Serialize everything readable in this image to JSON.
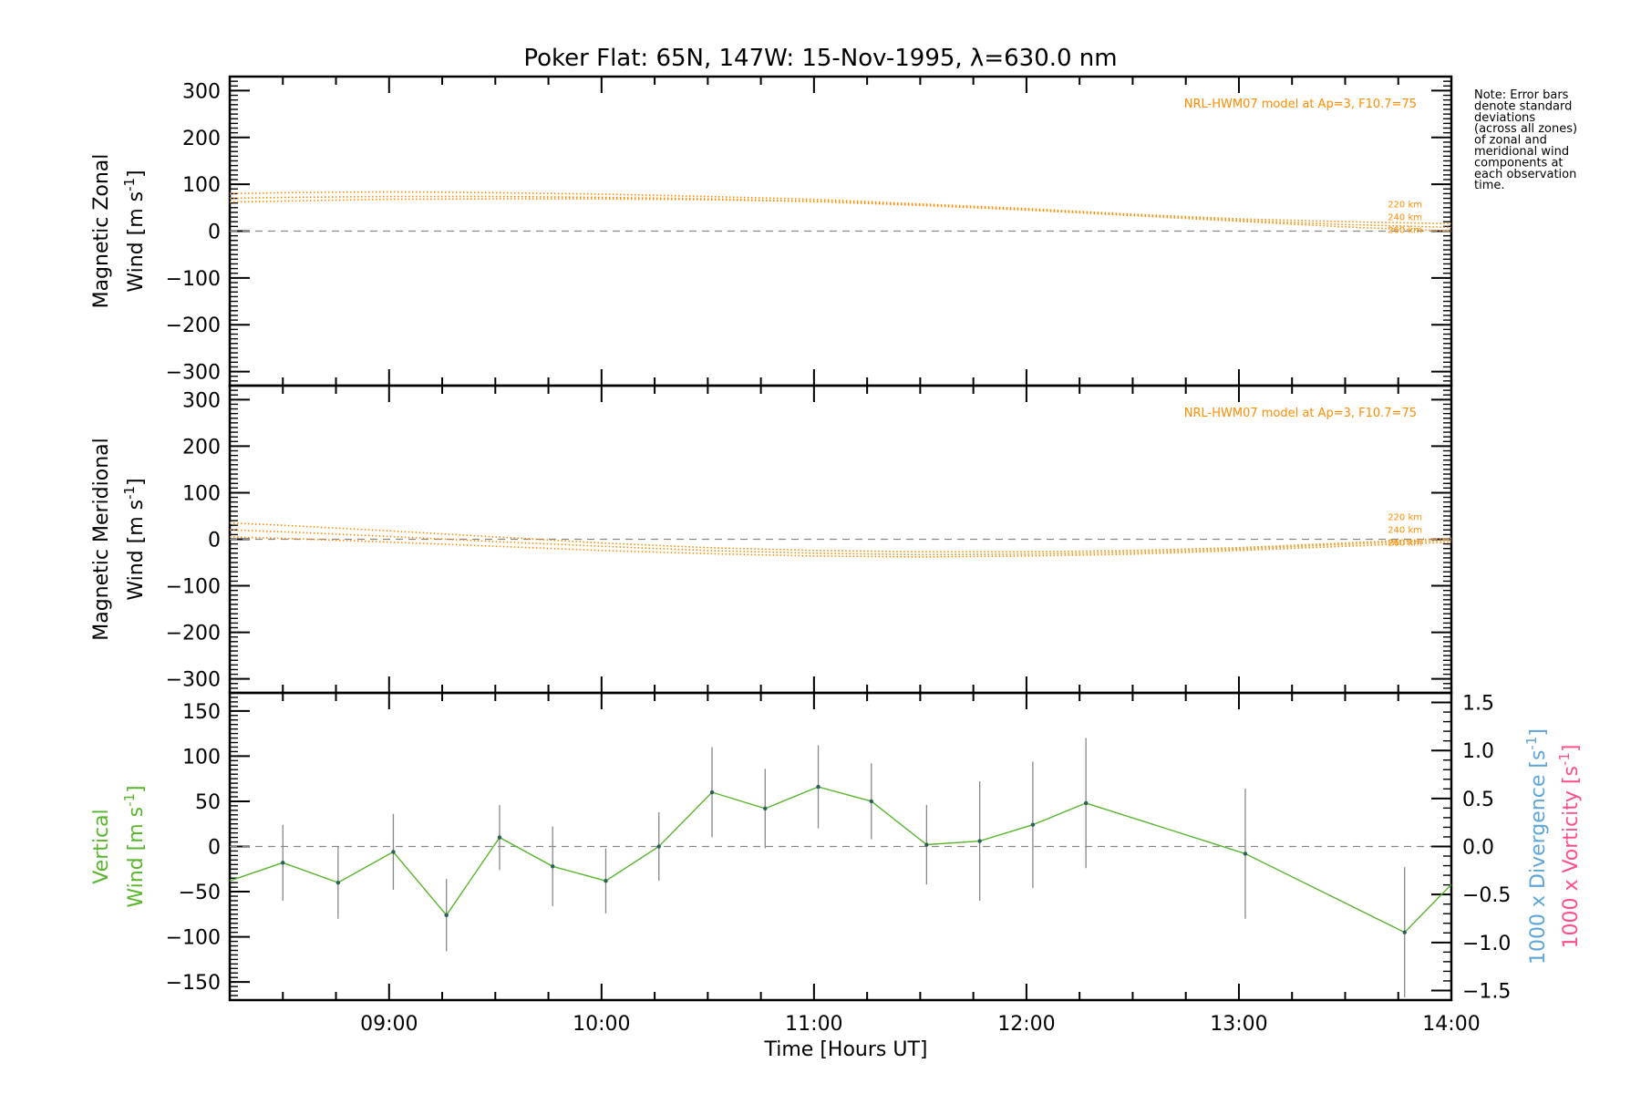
{
  "chart_data": {
    "type": "line",
    "title": "Poker Flat: 65N, 147W: 15-Nov-1995, λ=630.0 nm",
    "note": [
      "Note: Error bars",
      "denote standard",
      "deviations",
      "(across all zones)",
      "of zonal and",
      "meridional wind",
      "components at",
      "each observation",
      "time."
    ],
    "x_range": [
      8.25,
      14.0
    ],
    "x_ticks": [
      9,
      10,
      11,
      12,
      13,
      14
    ],
    "x_tick_labels": [
      "09:00",
      "10:00",
      "11:00",
      "12:00",
      "13:00",
      "14:00"
    ],
    "xlabel": "Time [Hours UT]",
    "colors": {
      "model": "#ff8c00",
      "vertical": "#5ab52e",
      "divergence": "#5fa6d6",
      "vorticity": "#ff4f8b",
      "errorbar": "#888888",
      "zero": "#888888"
    },
    "panels": [
      {
        "id": "zonal",
        "ylabel_lines": [
          "Magnetic Zonal",
          "Wind [m s",
          "-1",
          "]"
        ],
        "ylim": [
          -330,
          330
        ],
        "y_ticks": [
          -300,
          -200,
          -100,
          0,
          100,
          200,
          300
        ],
        "y_tick_labels": [
          "−300",
          "−200",
          "−100",
          "0",
          "100",
          "200",
          "300"
        ],
        "model_label": "NRL-HWM07 model at Ap=3, F10.7=75",
        "altitudes": [
          "220 km",
          "240 km",
          "260 km"
        ],
        "model_x": [
          8.25,
          8.5,
          9.0,
          9.5,
          10.0,
          10.5,
          11.0,
          11.5,
          12.0,
          12.5,
          13.0,
          13.5,
          14.0
        ],
        "model_series": [
          {
            "name": "220 km",
            "values": [
              80,
              82,
              84,
              82,
              79,
              74,
              68,
              58,
              48,
              36,
              26,
              20,
              16
            ]
          },
          {
            "name": "240 km",
            "values": [
              70,
              72,
              74,
              74,
              72,
              69,
              64,
              56,
              46,
              34,
              23,
              14,
              8
            ]
          },
          {
            "name": "260 km",
            "values": [
              62,
              64,
              68,
              69,
              69,
              67,
              63,
              55,
              45,
              33,
              21,
              9,
              0
            ]
          }
        ]
      },
      {
        "id": "meridional",
        "ylabel_lines": [
          "Magnetic Meridional",
          "Wind [m s",
          "-1",
          "]"
        ],
        "ylim": [
          -330,
          330
        ],
        "y_ticks": [
          -300,
          -200,
          -100,
          0,
          100,
          200,
          300
        ],
        "y_tick_labels": [
          "−300",
          "−200",
          "−100",
          "0",
          "100",
          "200",
          "300"
        ],
        "model_label": "NRL-HWM07 model at Ap=3, F10.7=75",
        "altitudes": [
          "220 km",
          "240 km",
          "260 km"
        ],
        "model_x": [
          8.25,
          8.5,
          9.0,
          9.5,
          10.0,
          10.5,
          11.0,
          11.5,
          12.0,
          12.5,
          13.0,
          13.5,
          14.0
        ],
        "model_series": [
          {
            "name": "220 km",
            "values": [
              35,
              30,
              18,
              5,
              -8,
              -18,
              -24,
              -27,
              -27,
              -24,
              -18,
              -8,
              2
            ]
          },
          {
            "name": "240 km",
            "values": [
              20,
              16,
              6,
              -5,
              -15,
              -24,
              -30,
              -33,
              -32,
              -28,
              -21,
              -11,
              -2
            ]
          },
          {
            "name": "260 km",
            "values": [
              5,
              2,
              -6,
              -15,
              -24,
              -31,
              -36,
              -38,
              -36,
              -32,
              -24,
              -15,
              -6
            ]
          }
        ]
      },
      {
        "id": "vertical",
        "ylabel_lines": [
          "Vertical",
          "Wind [m s",
          "-1",
          "]"
        ],
        "ylim": [
          -170,
          170
        ],
        "y_ticks": [
          -150,
          -100,
          -50,
          0,
          50,
          100,
          150
        ],
        "y_tick_labels": [
          "−150",
          "−100",
          "−50",
          "0",
          "50",
          "100",
          "150"
        ],
        "right_ylim": [
          -1.6,
          1.6
        ],
        "right_ticks": [
          -1.5,
          -1.0,
          -0.5,
          0.0,
          0.5,
          1.0,
          1.5
        ],
        "right_tick_labels": [
          "−1.5",
          "−1.0",
          "−0.5",
          "0.0",
          "0.5",
          "1.0",
          "1.5"
        ],
        "right_label_divergence": [
          "1000 x Divergence [s",
          "-1",
          "]"
        ],
        "right_label_vorticity": [
          "1000 x Vorticity [s",
          "-1",
          "]"
        ],
        "series": [
          {
            "x": [
              8.25,
              8.5,
              8.76,
              9.02,
              9.27,
              9.52,
              9.77,
              10.02,
              10.27,
              10.52,
              10.77,
              11.02,
              11.27,
              11.53,
              11.78,
              12.03,
              12.28,
              13.03,
              13.78,
              14.0
            ],
            "values": [
              -38,
              -18,
              -40,
              -6,
              -76,
              10,
              -22,
              -38,
              0,
              60,
              42,
              66,
              50,
              2,
              6,
              24,
              48,
              -8,
              -95,
              -42
            ],
            "errors": [
              null,
              42,
              40,
              42,
              40,
              36,
              44,
              36,
              38,
              50,
              44,
              46,
              42,
              44,
              66,
              70,
              72,
              72,
              72,
              null
            ]
          }
        ]
      }
    ]
  }
}
